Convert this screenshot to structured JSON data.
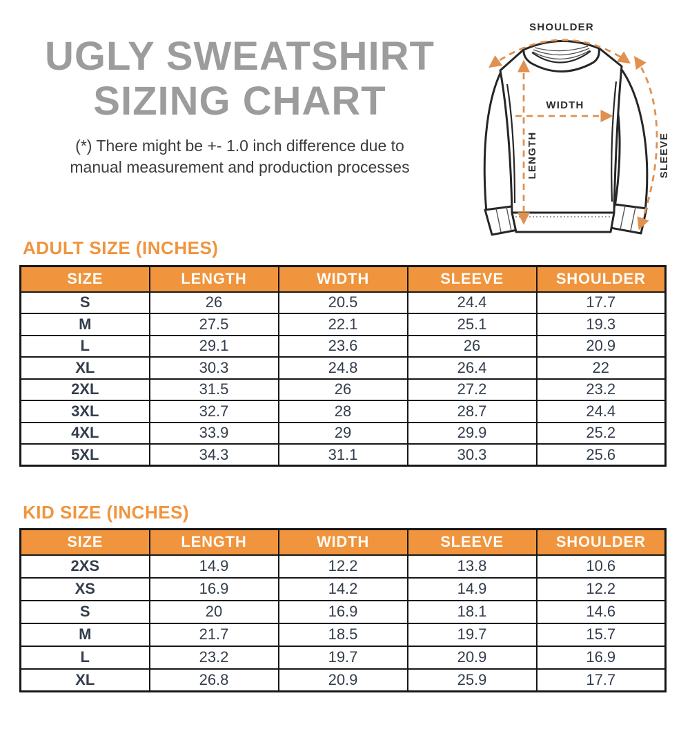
{
  "header": {
    "title_line1": "UGLY SWEATSHIRT",
    "title_line2": "SIZING CHART",
    "note_line1": "(*) There might be +- 1.0 inch difference due to",
    "note_line2": "manual measurement and production processes"
  },
  "diagram": {
    "labels": {
      "shoulder": "SHOULDER",
      "width": "WIDTH",
      "length": "LENGTH",
      "sleeve": "SLEEVE"
    },
    "arrow_color": "#E0904F",
    "outline_color": "#262626"
  },
  "colors": {
    "accent_orange": "#F0943D",
    "peach_cell": "#FAE9DA",
    "title_gray": "#9C9C9C",
    "size_navy": "#1D2B4A",
    "value_slate": "#333D4C",
    "table_border": "#161616"
  },
  "adult_table": {
    "heading": "ADULT SIZE (INCHES)",
    "columns": [
      "SIZE",
      "LENGTH",
      "WIDTH",
      "SLEEVE",
      "SHOULDER"
    ],
    "rows": [
      [
        "S",
        "26",
        "20.5",
        "24.4",
        "17.7"
      ],
      [
        "M",
        "27.5",
        "22.1",
        "25.1",
        "19.3"
      ],
      [
        "L",
        "29.1",
        "23.6",
        "26",
        "20.9"
      ],
      [
        "XL",
        "30.3",
        "24.8",
        "26.4",
        "22"
      ],
      [
        "2XL",
        "31.5",
        "26",
        "27.2",
        "23.2"
      ],
      [
        "3XL",
        "32.7",
        "28",
        "28.7",
        "24.4"
      ],
      [
        "4XL",
        "33.9",
        "29",
        "29.9",
        "25.2"
      ],
      [
        "5XL",
        "34.3",
        "31.1",
        "30.3",
        "25.6"
      ]
    ]
  },
  "kid_table": {
    "heading": "KID SIZE (INCHES)",
    "columns": [
      "SIZE",
      "LENGTH",
      "WIDTH",
      "SLEEVE",
      "SHOULDER"
    ],
    "rows": [
      [
        "2XS",
        "14.9",
        "12.2",
        "13.8",
        "10.6"
      ],
      [
        "XS",
        "16.9",
        "14.2",
        "14.9",
        "12.2"
      ],
      [
        "S",
        "20",
        "16.9",
        "18.1",
        "14.6"
      ],
      [
        "M",
        "21.7",
        "18.5",
        "19.7",
        "15.7"
      ],
      [
        "L",
        "23.2",
        "19.7",
        "20.9",
        "16.9"
      ],
      [
        "XL",
        "26.8",
        "20.9",
        "25.9",
        "17.7"
      ]
    ]
  },
  "chart_data": [
    {
      "type": "table",
      "title": "ADULT SIZE (INCHES)",
      "columns": [
        "SIZE",
        "LENGTH",
        "WIDTH",
        "SLEEVE",
        "SHOULDER"
      ],
      "rows": [
        [
          "S",
          26,
          20.5,
          24.4,
          17.7
        ],
        [
          "M",
          27.5,
          22.1,
          25.1,
          19.3
        ],
        [
          "L",
          29.1,
          23.6,
          26,
          20.9
        ],
        [
          "XL",
          30.3,
          24.8,
          26.4,
          22
        ],
        [
          "2XL",
          31.5,
          26,
          27.2,
          23.2
        ],
        [
          "3XL",
          32.7,
          28,
          28.7,
          24.4
        ],
        [
          "4XL",
          33.9,
          29,
          29.9,
          25.2
        ],
        [
          "5XL",
          34.3,
          31.1,
          30.3,
          25.6
        ]
      ]
    },
    {
      "type": "table",
      "title": "KID SIZE (INCHES)",
      "columns": [
        "SIZE",
        "LENGTH",
        "WIDTH",
        "SLEEVE",
        "SHOULDER"
      ],
      "rows": [
        [
          "2XS",
          14.9,
          12.2,
          13.8,
          10.6
        ],
        [
          "XS",
          16.9,
          14.2,
          14.9,
          12.2
        ],
        [
          "S",
          20,
          16.9,
          18.1,
          14.6
        ],
        [
          "M",
          21.7,
          18.5,
          19.7,
          15.7
        ],
        [
          "L",
          23.2,
          19.7,
          20.9,
          16.9
        ],
        [
          "XL",
          26.8,
          20.9,
          25.9,
          17.7
        ]
      ]
    }
  ]
}
